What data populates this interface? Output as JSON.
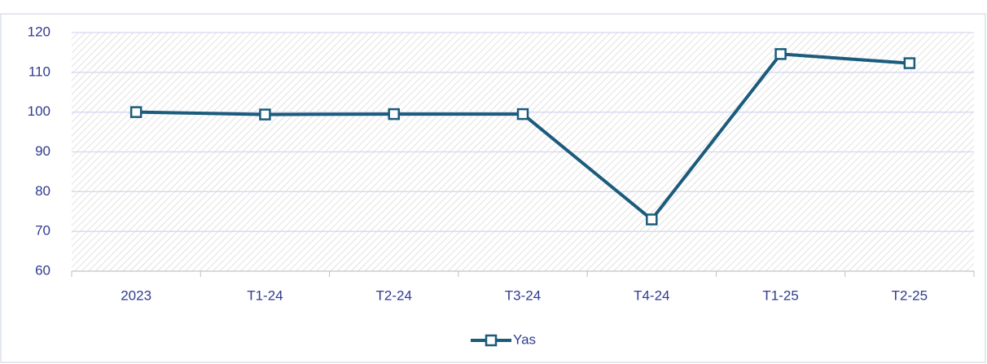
{
  "chart_data": {
    "type": "line",
    "categories": [
      "2023",
      "T1-24",
      "T2-24",
      "T3-24",
      "T4-24",
      "T1-25",
      "T2-25"
    ],
    "series": [
      {
        "name": "Yas",
        "color": "#1b5b7c",
        "values": [
          100,
          99.4,
          99.5,
          99.5,
          73,
          114.6,
          112.3
        ]
      }
    ],
    "ylim": [
      60,
      120
    ],
    "yticks": [
      60,
      70,
      80,
      90,
      100,
      110,
      120
    ],
    "grid": true,
    "legend": "bottom"
  }
}
